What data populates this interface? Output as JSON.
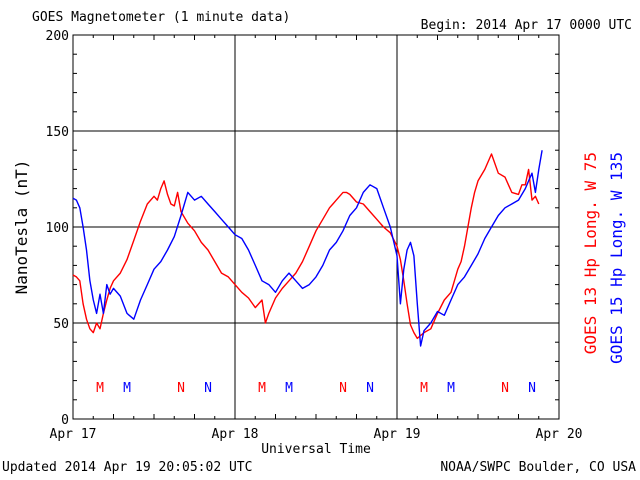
{
  "header": {
    "title": "GOES Magnetometer (1 minute data)",
    "begin": "Begin:  2014 Apr 17 0000 UTC"
  },
  "footer": {
    "updated": "Updated 2014 Apr 19 20:05:02 UTC",
    "credit": "NOAA/SWPC Boulder, CO USA"
  },
  "colors": {
    "goes13": "#ff0000",
    "goes15": "#0000ff",
    "grid": "#000000"
  },
  "chart_data": {
    "type": "line",
    "title": "GOES Magnetometer (1 minute data)",
    "xlabel": "Universal Time",
    "ylabel": "NanoTesla (nT)",
    "ylim": [
      0,
      200
    ],
    "xlim": [
      0,
      72
    ],
    "x_unit": "hours since 2014 Apr 17 0000 UTC",
    "yticks": [
      0,
      50,
      100,
      150,
      200
    ],
    "xticks": [
      0,
      24,
      48,
      72
    ],
    "xtick_labels": [
      "Apr 17",
      "Apr 18",
      "Apr 19",
      "Apr 20"
    ],
    "grid": true,
    "legend_position": "right",
    "series": [
      {
        "name": "GOES 13 Hp  Long. W 75",
        "color": "#ff0000",
        "x": [
          0,
          0.5,
          1,
          1.5,
          2,
          2.5,
          3,
          3.5,
          4,
          4.5,
          5,
          5.5,
          6,
          7,
          8,
          9,
          10,
          11,
          12,
          12.5,
          13,
          13.5,
          14,
          14.5,
          15,
          15.5,
          16,
          17,
          18,
          19,
          20,
          21,
          22,
          23,
          24,
          25,
          26,
          27,
          28,
          28.5,
          29,
          30,
          31,
          32,
          33,
          34,
          35,
          36,
          37,
          38,
          38.5,
          39,
          40,
          40.5,
          41,
          42,
          43,
          44,
          45,
          46,
          47,
          48,
          48.5,
          49,
          49.5,
          50,
          50.5,
          51,
          52,
          53,
          54,
          55,
          56,
          56.5,
          57,
          57.5,
          58,
          58.5,
          59,
          59.5,
          60,
          61,
          62,
          63,
          64,
          65,
          66,
          66.5,
          67,
          67.5,
          68,
          68.5,
          69
        ],
        "values": [
          75,
          74,
          72,
          60,
          52,
          47,
          45,
          50,
          47,
          55,
          62,
          68,
          72,
          76,
          83,
          93,
          103,
          112,
          116,
          114,
          120,
          124,
          117,
          112,
          111,
          118,
          108,
          102,
          98,
          92,
          88,
          82,
          76,
          74,
          70,
          66,
          63,
          58,
          62,
          50,
          55,
          63,
          68,
          72,
          76,
          82,
          90,
          98,
          104,
          110,
          112,
          114,
          118,
          118,
          117,
          113,
          112,
          108,
          104,
          100,
          97,
          90,
          83,
          72,
          60,
          49,
          45,
          42,
          45,
          47,
          55,
          62,
          66,
          72,
          78,
          82,
          90,
          100,
          110,
          118,
          124,
          130,
          138,
          128,
          126,
          118,
          117,
          122,
          122,
          130,
          114,
          116,
          112
        ]
      },
      {
        "name": "GOES 15 Hp  Long. W 135",
        "color": "#0000ff",
        "x": [
          0,
          0.5,
          1,
          1.5,
          2,
          2.5,
          3,
          3.5,
          4,
          4.5,
          5,
          5.5,
          6,
          7,
          8,
          9,
          10,
          11,
          12,
          13,
          14,
          15,
          16,
          17,
          18,
          19,
          20,
          21,
          22,
          23,
          24,
          25,
          26,
          27,
          28,
          29,
          30,
          31,
          32,
          33,
          34,
          35,
          36,
          37,
          38,
          39,
          40,
          41,
          42,
          43,
          44,
          45,
          46,
          47,
          48,
          48.5,
          49,
          49.5,
          50,
          50.5,
          51,
          51.5,
          52,
          53,
          54,
          55,
          56,
          57,
          58,
          59,
          60,
          61,
          62,
          63,
          64,
          65,
          66,
          67,
          67.5,
          68,
          68.5,
          69,
          69.5
        ],
        "values": [
          115,
          114,
          110,
          100,
          88,
          72,
          62,
          55,
          65,
          55,
          70,
          65,
          68,
          64,
          55,
          52,
          62,
          70,
          78,
          82,
          88,
          95,
          106,
          118,
          114,
          116,
          112,
          108,
          104,
          100,
          96,
          94,
          88,
          80,
          72,
          70,
          66,
          72,
          76,
          72,
          68,
          70,
          74,
          80,
          88,
          92,
          98,
          106,
          110,
          118,
          122,
          120,
          110,
          100,
          85,
          60,
          78,
          88,
          92,
          85,
          60,
          38,
          46,
          50,
          56,
          54,
          62,
          70,
          74,
          80,
          86,
          94,
          100,
          106,
          110,
          112,
          114,
          120,
          124,
          128,
          118,
          130,
          140
        ]
      }
    ],
    "annotations": [
      {
        "label": "M",
        "x": 4,
        "series": "GOES 13 Hp  Long. W 75"
      },
      {
        "label": "M",
        "x": 8,
        "series": "GOES 15 Hp  Long. W 135"
      },
      {
        "label": "N",
        "x": 16,
        "series": "GOES 13 Hp  Long. W 75"
      },
      {
        "label": "N",
        "x": 20,
        "series": "GOES 15 Hp  Long. W 135"
      },
      {
        "label": "M",
        "x": 28,
        "series": "GOES 13 Hp  Long. W 75"
      },
      {
        "label": "M",
        "x": 32,
        "series": "GOES 15 Hp  Long. W 135"
      },
      {
        "label": "N",
        "x": 40,
        "series": "GOES 13 Hp  Long. W 75"
      },
      {
        "label": "N",
        "x": 44,
        "series": "GOES 15 Hp  Long. W 135"
      },
      {
        "label": "M",
        "x": 52,
        "series": "GOES 13 Hp  Long. W 75"
      },
      {
        "label": "M",
        "x": 56,
        "series": "GOES 15 Hp  Long. W 135"
      },
      {
        "label": "N",
        "x": 64,
        "series": "GOES 13 Hp  Long. W 75"
      },
      {
        "label": "N",
        "x": 68,
        "series": "GOES 15 Hp  Long. W 135"
      }
    ]
  }
}
